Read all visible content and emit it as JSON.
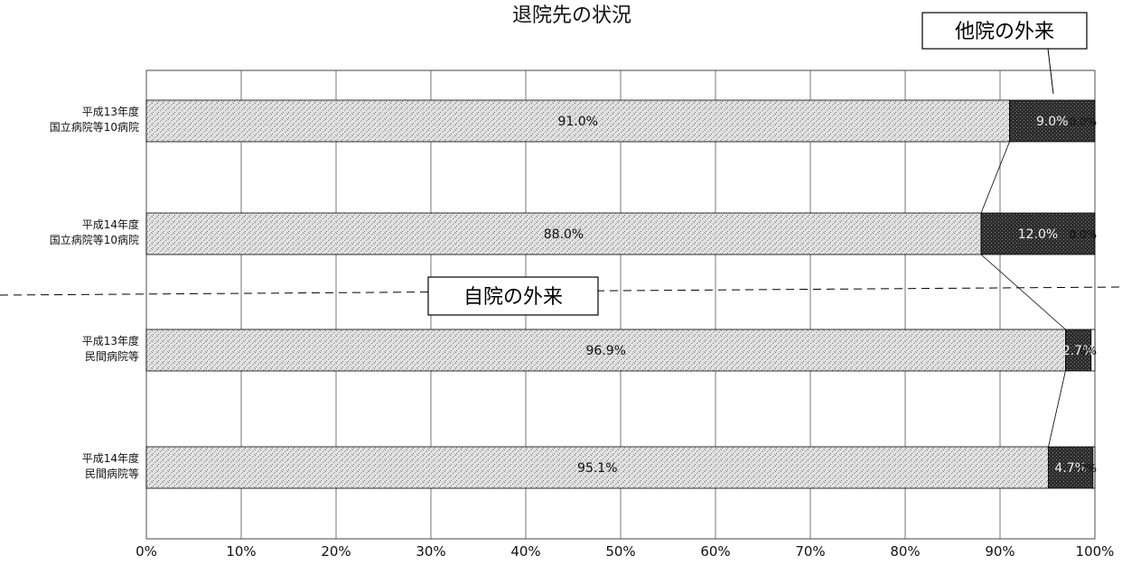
{
  "chart_data": {
    "type": "bar",
    "orientation": "horizontal",
    "stacked": true,
    "title": "退院先の状況",
    "categories": [
      [
        "平成13年度",
        "国立病院等10病院"
      ],
      [
        "平成14年度",
        "国立病院等10病院"
      ],
      [
        "平成13年度",
        "民間病院等"
      ],
      [
        "平成14年度",
        "民間病院等"
      ]
    ],
    "series": [
      {
        "name": "自院の外来",
        "values": [
          91.0,
          88.0,
          96.9,
          95.1
        ],
        "labels": [
          "91.0%",
          "88.0%",
          "96.9%",
          "95.1%"
        ],
        "color": "#dcdcdc"
      },
      {
        "name": "他院の外来",
        "values": [
          9.0,
          12.0,
          2.7,
          4.7
        ],
        "labels": [
          "9.0%",
          "12.0%",
          "2.7%",
          "4.7%"
        ],
        "color": "#3a3a3a"
      },
      {
        "name": "",
        "values": [
          0.0,
          0.0,
          0.4,
          0.2
        ],
        "labels": [
          "0.0%",
          "0.0%",
          "0%",
          "0%"
        ],
        "color": "#ffffff"
      }
    ],
    "xlim": [
      0,
      100
    ],
    "x_ticks": [
      "0%",
      "10%",
      "20%",
      "30%",
      "40%",
      "50%",
      "60%",
      "70%",
      "80%",
      "90%",
      "100%"
    ],
    "grid": true,
    "legend": "none",
    "annotations": [
      "他院の外来",
      "自院の外来"
    ]
  }
}
